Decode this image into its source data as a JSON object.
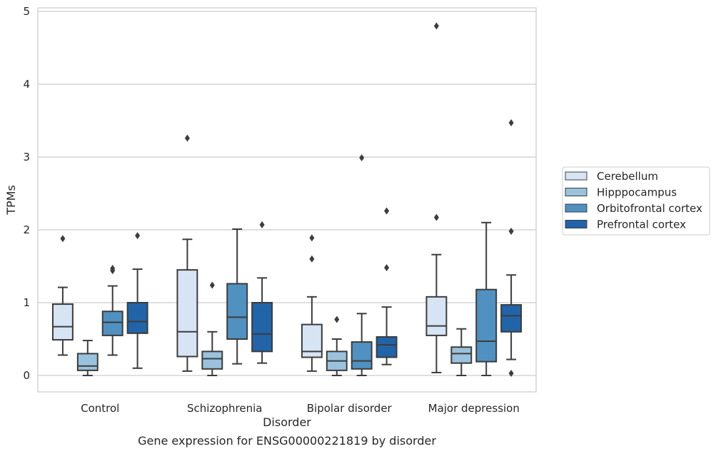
{
  "chart_data": {
    "type": "box",
    "caption": "Gene expression for ENSG00000221819 by disorder",
    "xlabel": "Disorder",
    "ylabel": "TPMs",
    "ylim": [
      -0.22,
      5.05
    ],
    "yticks": [
      "0",
      "1",
      "2",
      "3",
      "4",
      "5"
    ],
    "grid": "horizontal",
    "legend_position": "right",
    "categories": [
      "Control",
      "Schizophrenia",
      "Bipolar disorder",
      "Major depression"
    ],
    "series": [
      {
        "name": "Cerebellum",
        "color": "#d6e4f3",
        "boxes": [
          {
            "whisker_low": 0.28,
            "q1": 0.49,
            "median": 0.67,
            "q3": 0.98,
            "whisker_high": 1.21,
            "outliers": [
              1.88
            ]
          },
          {
            "whisker_low": 0.06,
            "q1": 0.26,
            "median": 0.6,
            "q3": 1.45,
            "whisker_high": 1.87,
            "outliers": [
              3.26
            ]
          },
          {
            "whisker_low": 0.06,
            "q1": 0.25,
            "median": 0.33,
            "q3": 0.7,
            "whisker_high": 1.08,
            "outliers": [
              1.6,
              1.89
            ]
          },
          {
            "whisker_low": 0.04,
            "q1": 0.55,
            "median": 0.68,
            "q3": 1.08,
            "whisker_high": 1.66,
            "outliers": [
              2.17,
              4.8
            ]
          }
        ]
      },
      {
        "name": "Hipppocampus",
        "color": "#9ac2dd",
        "boxes": [
          {
            "whisker_low": 0.0,
            "q1": 0.07,
            "median": 0.13,
            "q3": 0.3,
            "whisker_high": 0.48,
            "outliers": []
          },
          {
            "whisker_low": 0.0,
            "q1": 0.09,
            "median": 0.23,
            "q3": 0.33,
            "whisker_high": 0.6,
            "outliers": [
              1.24
            ]
          },
          {
            "whisker_low": 0.0,
            "q1": 0.07,
            "median": 0.2,
            "q3": 0.33,
            "whisker_high": 0.5,
            "outliers": [
              0.77
            ]
          },
          {
            "whisker_low": 0.0,
            "q1": 0.17,
            "median": 0.3,
            "q3": 0.39,
            "whisker_high": 0.64,
            "outliers": []
          }
        ]
      },
      {
        "name": "Orbitofrontal cortex",
        "color": "#5191c2",
        "boxes": [
          {
            "whisker_low": 0.28,
            "q1": 0.55,
            "median": 0.73,
            "q3": 0.88,
            "whisker_high": 1.23,
            "outliers": [
              1.44,
              1.47
            ]
          },
          {
            "whisker_low": 0.16,
            "q1": 0.5,
            "median": 0.8,
            "q3": 1.26,
            "whisker_high": 2.01,
            "outliers": []
          },
          {
            "whisker_low": 0.0,
            "q1": 0.09,
            "median": 0.2,
            "q3": 0.46,
            "whisker_high": 0.85,
            "outliers": [
              2.99
            ]
          },
          {
            "whisker_low": 0.0,
            "q1": 0.19,
            "median": 0.47,
            "q3": 1.18,
            "whisker_high": 2.1,
            "outliers": []
          }
        ]
      },
      {
        "name": "Prefrontal cortex",
        "color": "#2264a8",
        "boxes": [
          {
            "whisker_low": 0.1,
            "q1": 0.58,
            "median": 0.74,
            "q3": 1.0,
            "whisker_high": 1.46,
            "outliers": [
              1.92
            ]
          },
          {
            "whisker_low": 0.17,
            "q1": 0.33,
            "median": 0.57,
            "q3": 1.0,
            "whisker_high": 1.34,
            "outliers": [
              2.07
            ]
          },
          {
            "whisker_low": 0.15,
            "q1": 0.25,
            "median": 0.42,
            "q3": 0.53,
            "whisker_high": 0.94,
            "outliers": [
              1.48,
              2.26
            ]
          },
          {
            "whisker_low": 0.22,
            "q1": 0.6,
            "median": 0.82,
            "q3": 0.97,
            "whisker_high": 1.38,
            "outliers": [
              0.03,
              1.98,
              3.47
            ]
          }
        ]
      }
    ]
  }
}
